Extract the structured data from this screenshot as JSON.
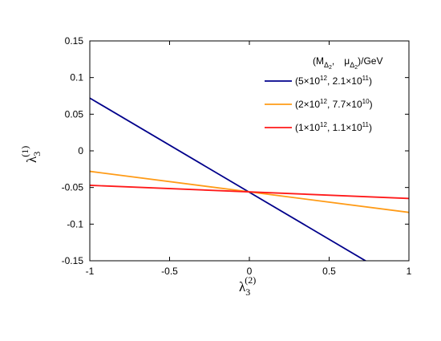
{
  "chart_data": {
    "type": "line",
    "xlabel": {
      "base": "λ",
      "sub": "3",
      "sup": "(2)"
    },
    "ylabel": {
      "base": "λ",
      "sub": "3",
      "sup": "(1)"
    },
    "xlim": [
      -1,
      1
    ],
    "ylim": [
      -0.15,
      0.15
    ],
    "xticks": [
      -1,
      -0.5,
      0,
      0.5,
      1
    ],
    "xtick_labels": [
      "-1",
      "-0.5",
      "0",
      "0.5",
      "1"
    ],
    "yticks": [
      -0.15,
      -0.1,
      -0.05,
      0,
      0.05,
      0.1,
      0.15
    ],
    "ytick_labels": [
      "-0.15",
      "-0.1",
      "-0.05",
      "0",
      "0.05",
      "0.1",
      "0.15"
    ],
    "grid": false,
    "legend_position": "top-right",
    "legend_title": {
      "open": "(M",
      "sym": "Δ",
      "sub": "2",
      "comma": ",",
      "mu": "μ",
      "close": ")/GeV"
    },
    "series": [
      {
        "name": "(5×10¹², 2.1×10¹¹)",
        "label": {
          "a": "(5×10",
          "ae": "12",
          "b": ", 2.1×10",
          "be": "11",
          "c": ")"
        },
        "color": "#00008b",
        "x": [
          -1,
          1
        ],
        "y": [
          0.072,
          -0.185
        ]
      },
      {
        "name": "(2×10¹², 7.7×10¹⁰)",
        "label": {
          "a": "(2×10",
          "ae": "12",
          "b": ", 7.7×10",
          "be": "10",
          "c": ")"
        },
        "color": "#ff9b17",
        "x": [
          -1,
          1
        ],
        "y": [
          -0.028,
          -0.084
        ]
      },
      {
        "name": "(1×10¹², 1.1×10¹¹)",
        "label": {
          "a": "(1×10",
          "ae": "12",
          "b": ", 1.1×10",
          "be": "11",
          "c": ")"
        },
        "color": "#ff1a1a",
        "x": [
          -1,
          1
        ],
        "y": [
          -0.047,
          -0.065
        ]
      }
    ]
  }
}
